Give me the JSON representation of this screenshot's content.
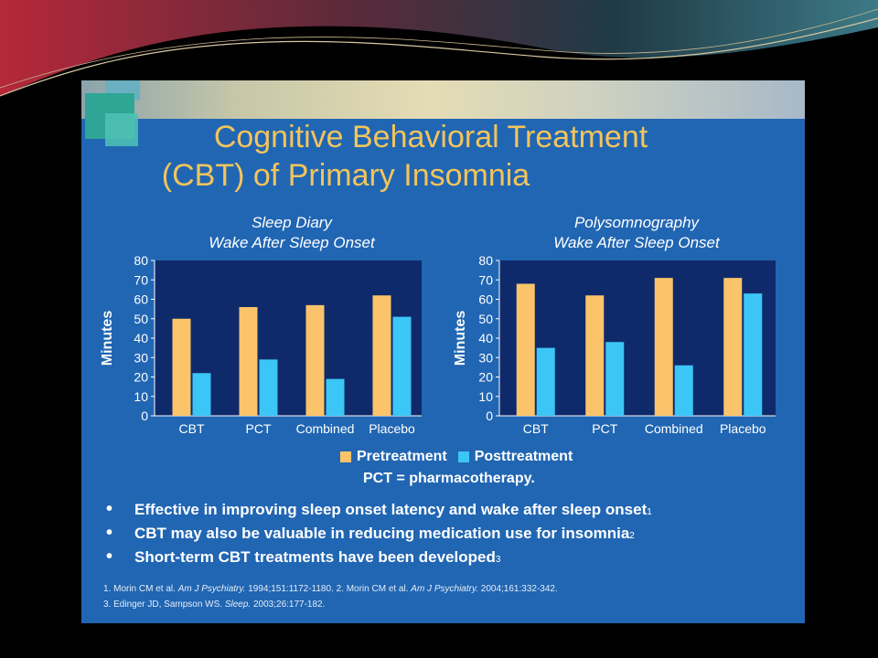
{
  "slide": {
    "title_line_1": "Cognitive Behavioral Treatment",
    "title_line_2": "(CBT) of Primary Insomnia",
    "legend": {
      "pretreatment": "Pretreatment",
      "posttreatment": "Posttreatment"
    },
    "abbreviation_note": "PCT = pharmacotherapy.",
    "bullets": [
      {
        "text": "Effective in improving sleep onset latency and wake after sleep onset",
        "sup": "1"
      },
      {
        "text": "CBT may also be valuable in reducing medication use for insomnia",
        "sup": "2"
      },
      {
        "text": "Short-term CBT treatments have been developed",
        "sup": "3"
      }
    ],
    "references": {
      "r1_a": "1. Morin CM et al. ",
      "r1_journal_a": "Am J Psychiatry.",
      "r1_b": " 1994;151:1172-1180. 2. Morin CM et al. ",
      "r1_journal_b": "Am J Psychiatry.",
      "r1_c": " 2004;161:332-342.",
      "r2_a": "3. Edinger JD, Sampson WS. ",
      "r2_journal": "Sleep.",
      "r2_b": " 2003;26:177-182."
    },
    "colors": {
      "pretreatment": "#fbc46b",
      "posttreatment": "#3cc6f5",
      "plot_background": "#0f2a6b",
      "slide_background": "#2166b3",
      "title": "#f2c45c"
    }
  },
  "chart_data": [
    {
      "type": "bar",
      "title": "Sleep Diary",
      "subtitle": "Wake After Sleep Onset",
      "ylabel": "Minutes",
      "xlabel": "",
      "ylim": [
        0,
        80
      ],
      "yticks": [
        "0",
        "10",
        "20",
        "30",
        "40",
        "50",
        "60",
        "70",
        "80"
      ],
      "categories": [
        "CBT",
        "PCT",
        "Combined",
        "Placebo"
      ],
      "series": [
        {
          "name": "Pretreatment",
          "values": [
            50,
            56,
            57,
            62
          ]
        },
        {
          "name": "Posttreatment",
          "values": [
            22,
            29,
            19,
            51
          ]
        }
      ],
      "legend": "bottom",
      "grid": false
    },
    {
      "type": "bar",
      "title": "Polysomnography",
      "subtitle": "Wake After Sleep Onset",
      "ylabel": "Minutes",
      "xlabel": "",
      "ylim": [
        0,
        80
      ],
      "yticks": [
        "0",
        "10",
        "20",
        "30",
        "40",
        "50",
        "60",
        "70",
        "80"
      ],
      "categories": [
        "CBT",
        "PCT",
        "Combined",
        "Placebo"
      ],
      "series": [
        {
          "name": "Pretreatment",
          "values": [
            68,
            62,
            71,
            71
          ]
        },
        {
          "name": "Posttreatment",
          "values": [
            35,
            38,
            26,
            63
          ]
        }
      ],
      "legend": "bottom",
      "grid": false
    }
  ]
}
